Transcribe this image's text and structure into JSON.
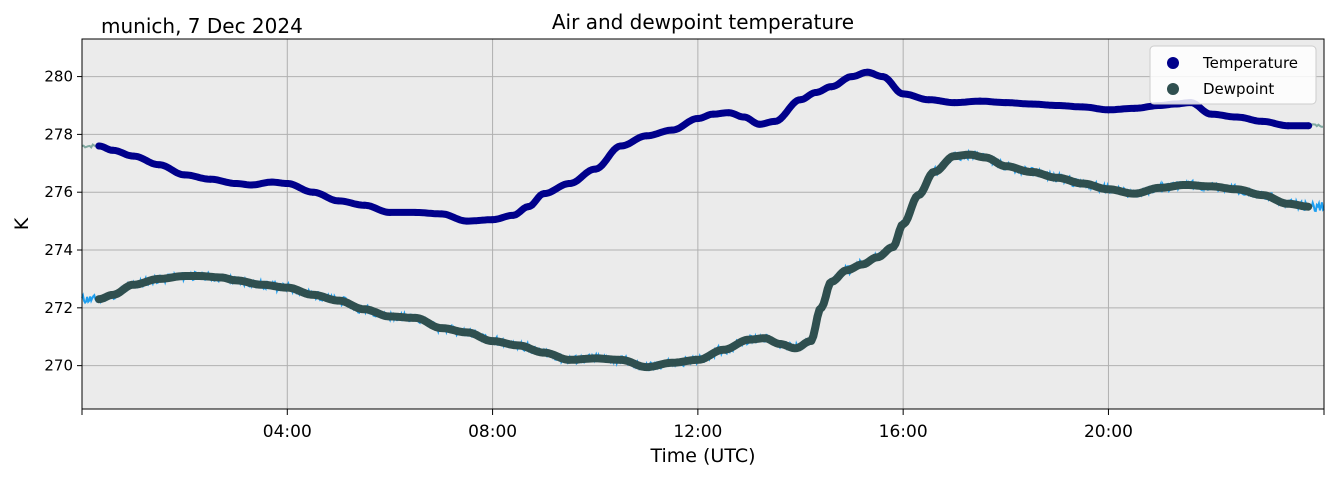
{
  "subtitle": "munich, 7 Dec 2024",
  "chart_data": {
    "type": "line",
    "title": "Air and dewpoint temperature",
    "xlabel": "Time (UTC)",
    "ylabel": "K",
    "x_unit": "hours UTC",
    "xlim": [
      0,
      24.2
    ],
    "ylim": [
      268.5,
      281.3
    ],
    "xticks": [
      {
        "x": 4,
        "label": "04:00"
      },
      {
        "x": 8,
        "label": "08:00"
      },
      {
        "x": 12,
        "label": "12:00"
      },
      {
        "x": 16,
        "label": "16:00"
      },
      {
        "x": 20,
        "label": "20:00"
      }
    ],
    "xticks_minor": [
      0,
      24.2
    ],
    "yticks": [
      {
        "y": 270,
        "label": "270"
      },
      {
        "y": 272,
        "label": "272"
      },
      {
        "y": 274,
        "label": "274"
      },
      {
        "y": 276,
        "label": "276"
      },
      {
        "y": 278,
        "label": "278"
      },
      {
        "y": 280,
        "label": "280"
      }
    ],
    "grid": true,
    "legend_position": "top-right",
    "colors": {
      "temperature": "#00008b",
      "temperature_raw": "#7fa8a0",
      "dewpoint": "#2f4f4f",
      "dewpoint_raw": "#1e9ff0",
      "plot_bg": "#ebebeb",
      "grid": "#b0b0b0"
    },
    "series": [
      {
        "name": "Temperature",
        "x": [
          0.33,
          0.6,
          1.0,
          1.5,
          2.0,
          2.5,
          3.0,
          3.3,
          3.7,
          4.0,
          4.5,
          5.0,
          5.5,
          6.0,
          6.5,
          7.0,
          7.5,
          8.0,
          8.4,
          8.7,
          9.0,
          9.5,
          10.0,
          10.5,
          11.0,
          11.5,
          12.0,
          12.3,
          12.6,
          12.9,
          13.2,
          13.5,
          14.0,
          14.3,
          14.6,
          15.0,
          15.3,
          15.6,
          16.0,
          16.5,
          17.0,
          17.5,
          18.0,
          18.5,
          19.0,
          19.5,
          20.0,
          20.5,
          21.0,
          21.3,
          21.6,
          22.0,
          22.5,
          23.0,
          23.5,
          23.9
        ],
        "y": [
          277.6,
          277.45,
          277.25,
          276.95,
          276.6,
          276.45,
          276.3,
          276.25,
          276.35,
          276.3,
          276.0,
          275.7,
          275.55,
          275.3,
          275.3,
          275.25,
          275.0,
          275.05,
          275.2,
          275.5,
          275.95,
          276.3,
          276.8,
          277.6,
          277.95,
          278.15,
          278.55,
          278.7,
          278.75,
          278.6,
          278.35,
          278.45,
          279.2,
          279.45,
          279.65,
          280.0,
          280.15,
          280.0,
          279.4,
          279.2,
          279.1,
          279.15,
          279.1,
          279.05,
          279.0,
          278.95,
          278.85,
          278.9,
          279.0,
          279.05,
          279.1,
          278.7,
          278.6,
          278.45,
          278.3,
          278.3
        ]
      },
      {
        "name": "Dewpoint",
        "x": [
          0.33,
          0.6,
          1.0,
          1.5,
          2.0,
          2.3,
          2.7,
          3.0,
          3.5,
          4.0,
          4.5,
          5.0,
          5.5,
          6.0,
          6.5,
          7.0,
          7.5,
          8.0,
          8.5,
          9.0,
          9.5,
          10.0,
          10.5,
          11.0,
          11.5,
          12.0,
          12.5,
          13.0,
          13.3,
          13.6,
          13.9,
          14.2,
          14.4,
          14.6,
          14.9,
          15.2,
          15.5,
          15.8,
          16.0,
          16.3,
          16.6,
          17.0,
          17.3,
          17.6,
          18.0,
          18.5,
          19.0,
          19.5,
          20.0,
          20.5,
          21.0,
          21.5,
          22.0,
          22.5,
          23.0,
          23.5,
          23.9
        ],
        "y": [
          272.3,
          272.45,
          272.8,
          273.0,
          273.1,
          273.1,
          273.05,
          272.95,
          272.8,
          272.7,
          272.45,
          272.25,
          271.95,
          271.7,
          271.65,
          271.3,
          271.15,
          270.85,
          270.7,
          270.45,
          270.2,
          270.25,
          270.2,
          269.95,
          270.1,
          270.2,
          270.55,
          270.9,
          270.95,
          270.75,
          270.6,
          270.85,
          272.0,
          272.9,
          273.3,
          273.5,
          273.75,
          274.1,
          274.9,
          275.9,
          276.7,
          277.25,
          277.3,
          277.2,
          276.9,
          276.7,
          276.5,
          276.3,
          276.1,
          275.95,
          276.15,
          276.25,
          276.2,
          276.1,
          275.9,
          275.6,
          275.5
        ]
      }
    ]
  }
}
